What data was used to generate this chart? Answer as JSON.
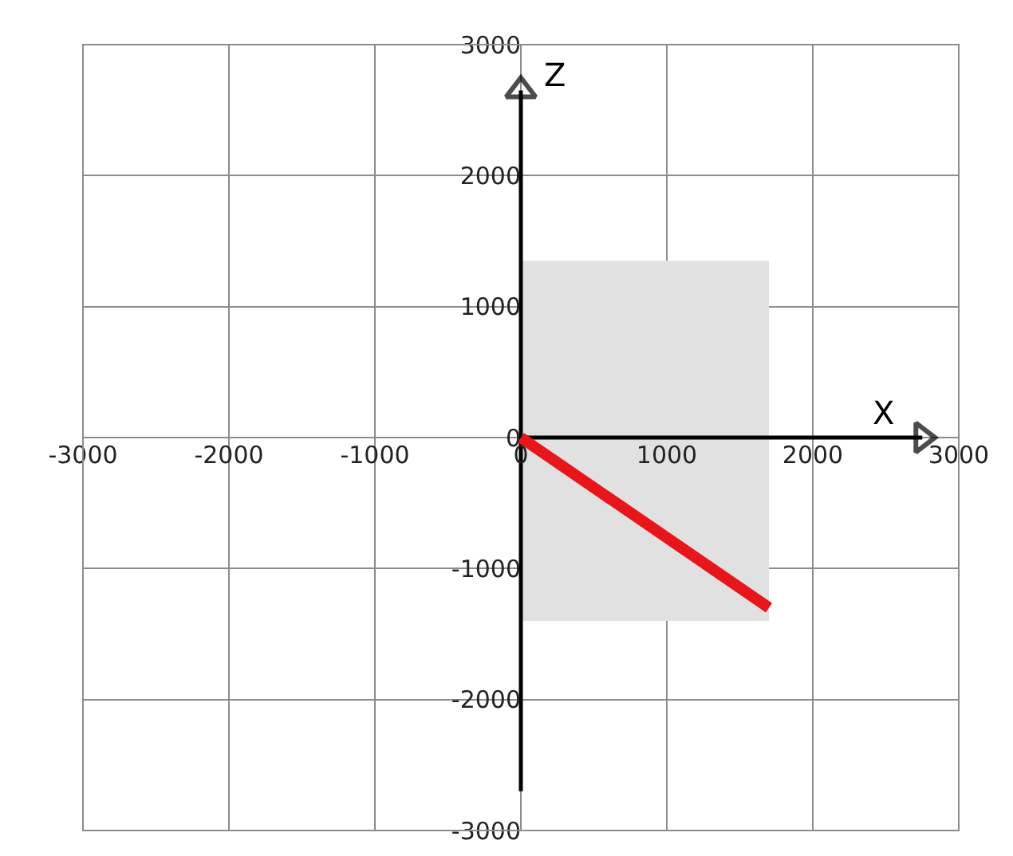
{
  "chart_data": {
    "type": "line",
    "xlim": [
      -3000,
      3000
    ],
    "xticks": [
      -3000,
      -2000,
      -1000,
      0,
      1000,
      2000,
      3000
    ],
    "ylim": [
      -3000,
      3000
    ],
    "yticks": [
      -3000,
      -2000,
      -1000,
      0,
      1000,
      2000,
      3000
    ],
    "grid": true,
    "annotations": [
      "X",
      "Z"
    ],
    "series": [
      {
        "type": "bar",
        "color": "#e1e1e1",
        "x": [
          850
        ],
        "values": [
          2750
        ],
        "base": [
          -1400
        ]
      },
      {
        "color": "#000000",
        "x": [
          0,
          2750
        ],
        "values": [
          0,
          0
        ],
        "marker": "triangle"
      },
      {
        "color": "#000000",
        "x": [
          0,
          0
        ],
        "values": [
          -2700,
          2650
        ],
        "marker": "triangle"
      },
      {
        "color": "#e8161b",
        "x": [
          0,
          1700
        ],
        "values": [
          0,
          -1300
        ],
        "marker": "none"
      }
    ]
  }
}
